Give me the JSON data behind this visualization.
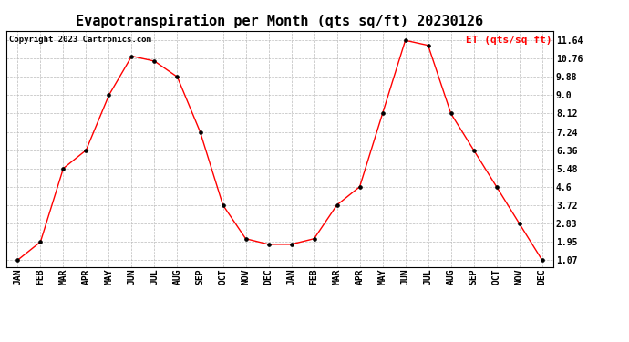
{
  "title": "Evapotranspiration per Month (qts sq/ft) 20230126",
  "copyright": "Copyright 2023 Cartronics.com",
  "legend_label": "ET (qts/sq ft)",
  "x_labels": [
    "JAN",
    "FEB",
    "MAR",
    "APR",
    "MAY",
    "JUN",
    "JUL",
    "AUG",
    "SEP",
    "OCT",
    "NOV",
    "DEC",
    "JAN",
    "FEB",
    "MAR",
    "APR",
    "MAY",
    "JUN",
    "JUL",
    "AUG",
    "SEP",
    "OCT",
    "NOV",
    "DEC"
  ],
  "y_values": [
    1.07,
    1.95,
    5.48,
    6.36,
    9.0,
    10.88,
    10.64,
    9.88,
    7.24,
    3.72,
    2.1,
    1.83,
    1.83,
    2.1,
    3.72,
    4.6,
    8.12,
    11.64,
    11.4,
    8.12,
    6.36,
    4.6,
    2.83,
    1.07
  ],
  "y_ticks": [
    1.07,
    1.95,
    2.83,
    3.72,
    4.6,
    5.48,
    6.36,
    7.24,
    8.12,
    9.0,
    9.88,
    10.76,
    11.64
  ],
  "y_min": 0.75,
  "y_max": 12.1,
  "line_color": "red",
  "marker_color": "black",
  "background_color": "white",
  "grid_color": "#bbbbbb",
  "title_fontsize": 11,
  "copyright_fontsize": 6.5,
  "legend_fontsize": 8,
  "tick_fontsize": 7
}
